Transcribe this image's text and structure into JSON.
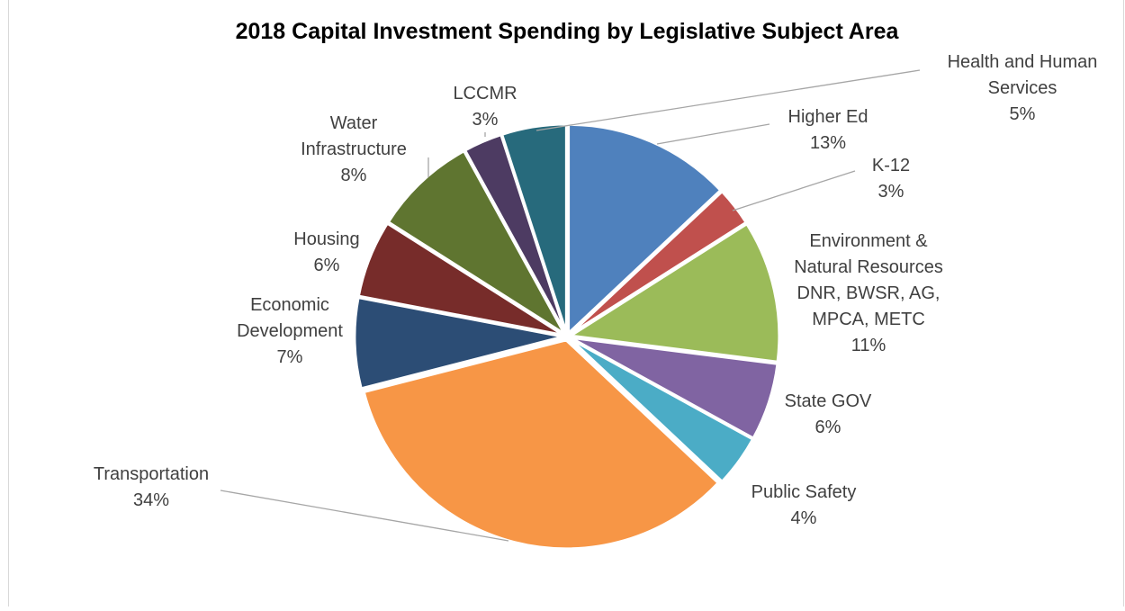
{
  "chart_data": {
    "type": "pie",
    "title": "2018 Capital Investment Spending by Legislative Subject Area",
    "slices": [
      {
        "label": [
          "Higher Ed",
          "13%"
        ],
        "value": 13,
        "color": "#4f81bd"
      },
      {
        "label": [
          "K-12",
          "3%"
        ],
        "value": 3,
        "color": "#c0504d"
      },
      {
        "label": [
          "Environment &",
          "Natural Resources",
          "DNR, BWSR, AG,",
          "MPCA, METC",
          "11%"
        ],
        "value": 11,
        "color": "#9bbb59"
      },
      {
        "label": [
          "State GOV",
          "6%"
        ],
        "value": 6,
        "color": "#8064a2"
      },
      {
        "label": [
          "Public Safety",
          "4%"
        ],
        "value": 4,
        "color": "#4bacc6"
      },
      {
        "label": [
          "Transportation",
          "34%"
        ],
        "value": 34,
        "color": "#f79646"
      },
      {
        "label": [
          "Economic",
          "Development",
          "7%"
        ],
        "value": 7,
        "color": "#2c4d75"
      },
      {
        "label": [
          "Housing",
          "6%"
        ],
        "value": 6,
        "color": "#772c2a"
      },
      {
        "label": [
          "Water",
          "Infrastructure",
          "8%"
        ],
        "value": 8,
        "color": "#5f7530"
      },
      {
        "label": [
          "LCCMR",
          "3%"
        ],
        "value": 3,
        "color": "#4d3b62"
      },
      {
        "label": [
          "Health and Human",
          "Services",
          "5%"
        ],
        "value": 5,
        "color": "#276a7c"
      }
    ],
    "start_angle": "12 o'clock",
    "direction": "clockwise",
    "legend": "none",
    "data_labels": "outside with leader lines"
  }
}
